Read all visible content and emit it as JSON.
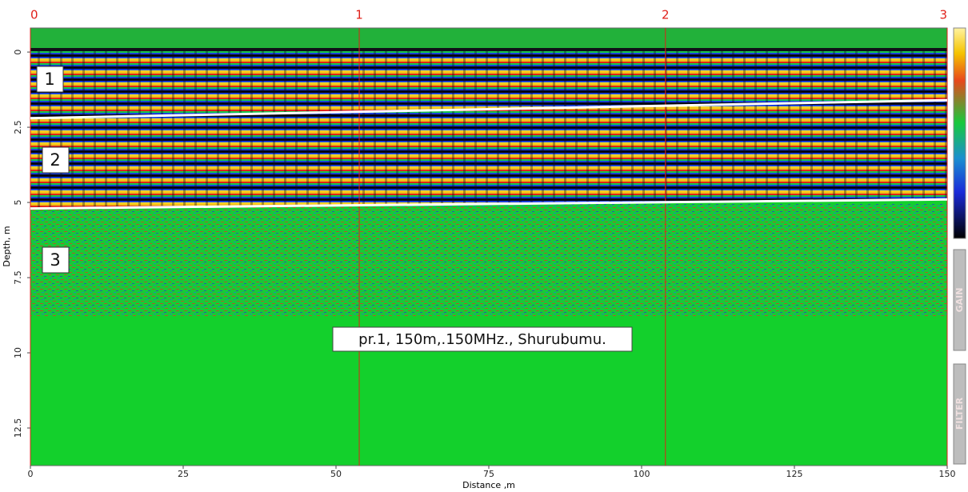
{
  "chart_data": {
    "type": "radargram",
    "xlabel": "Distance ,m",
    "ylabel": "Depth, m",
    "xlim": [
      0,
      150
    ],
    "xticks": [
      0,
      25,
      50,
      75,
      100,
      125,
      150
    ],
    "ylim": [
      -0.8,
      13.75
    ],
    "yticks": [
      0,
      2.5,
      5,
      7.5,
      10,
      12.5
    ],
    "markers": {
      "labels": [
        0,
        1,
        2,
        3
      ],
      "x": [
        0,
        53.8,
        103.9,
        150
      ],
      "color": "#e0201a"
    },
    "boundaries": [
      {
        "x": [
          0,
          150
        ],
        "values": [
          2.2,
          1.6
        ]
      },
      {
        "x": [
          0,
          150
        ],
        "values": [
          5.2,
          4.9
        ]
      }
    ],
    "layer_labels": [
      1,
      2,
      3
    ],
    "annotation": "pr.1, 150m,.150MHz., Shurubumu.",
    "buttons": [
      "GAIN",
      "FILTER"
    ]
  }
}
